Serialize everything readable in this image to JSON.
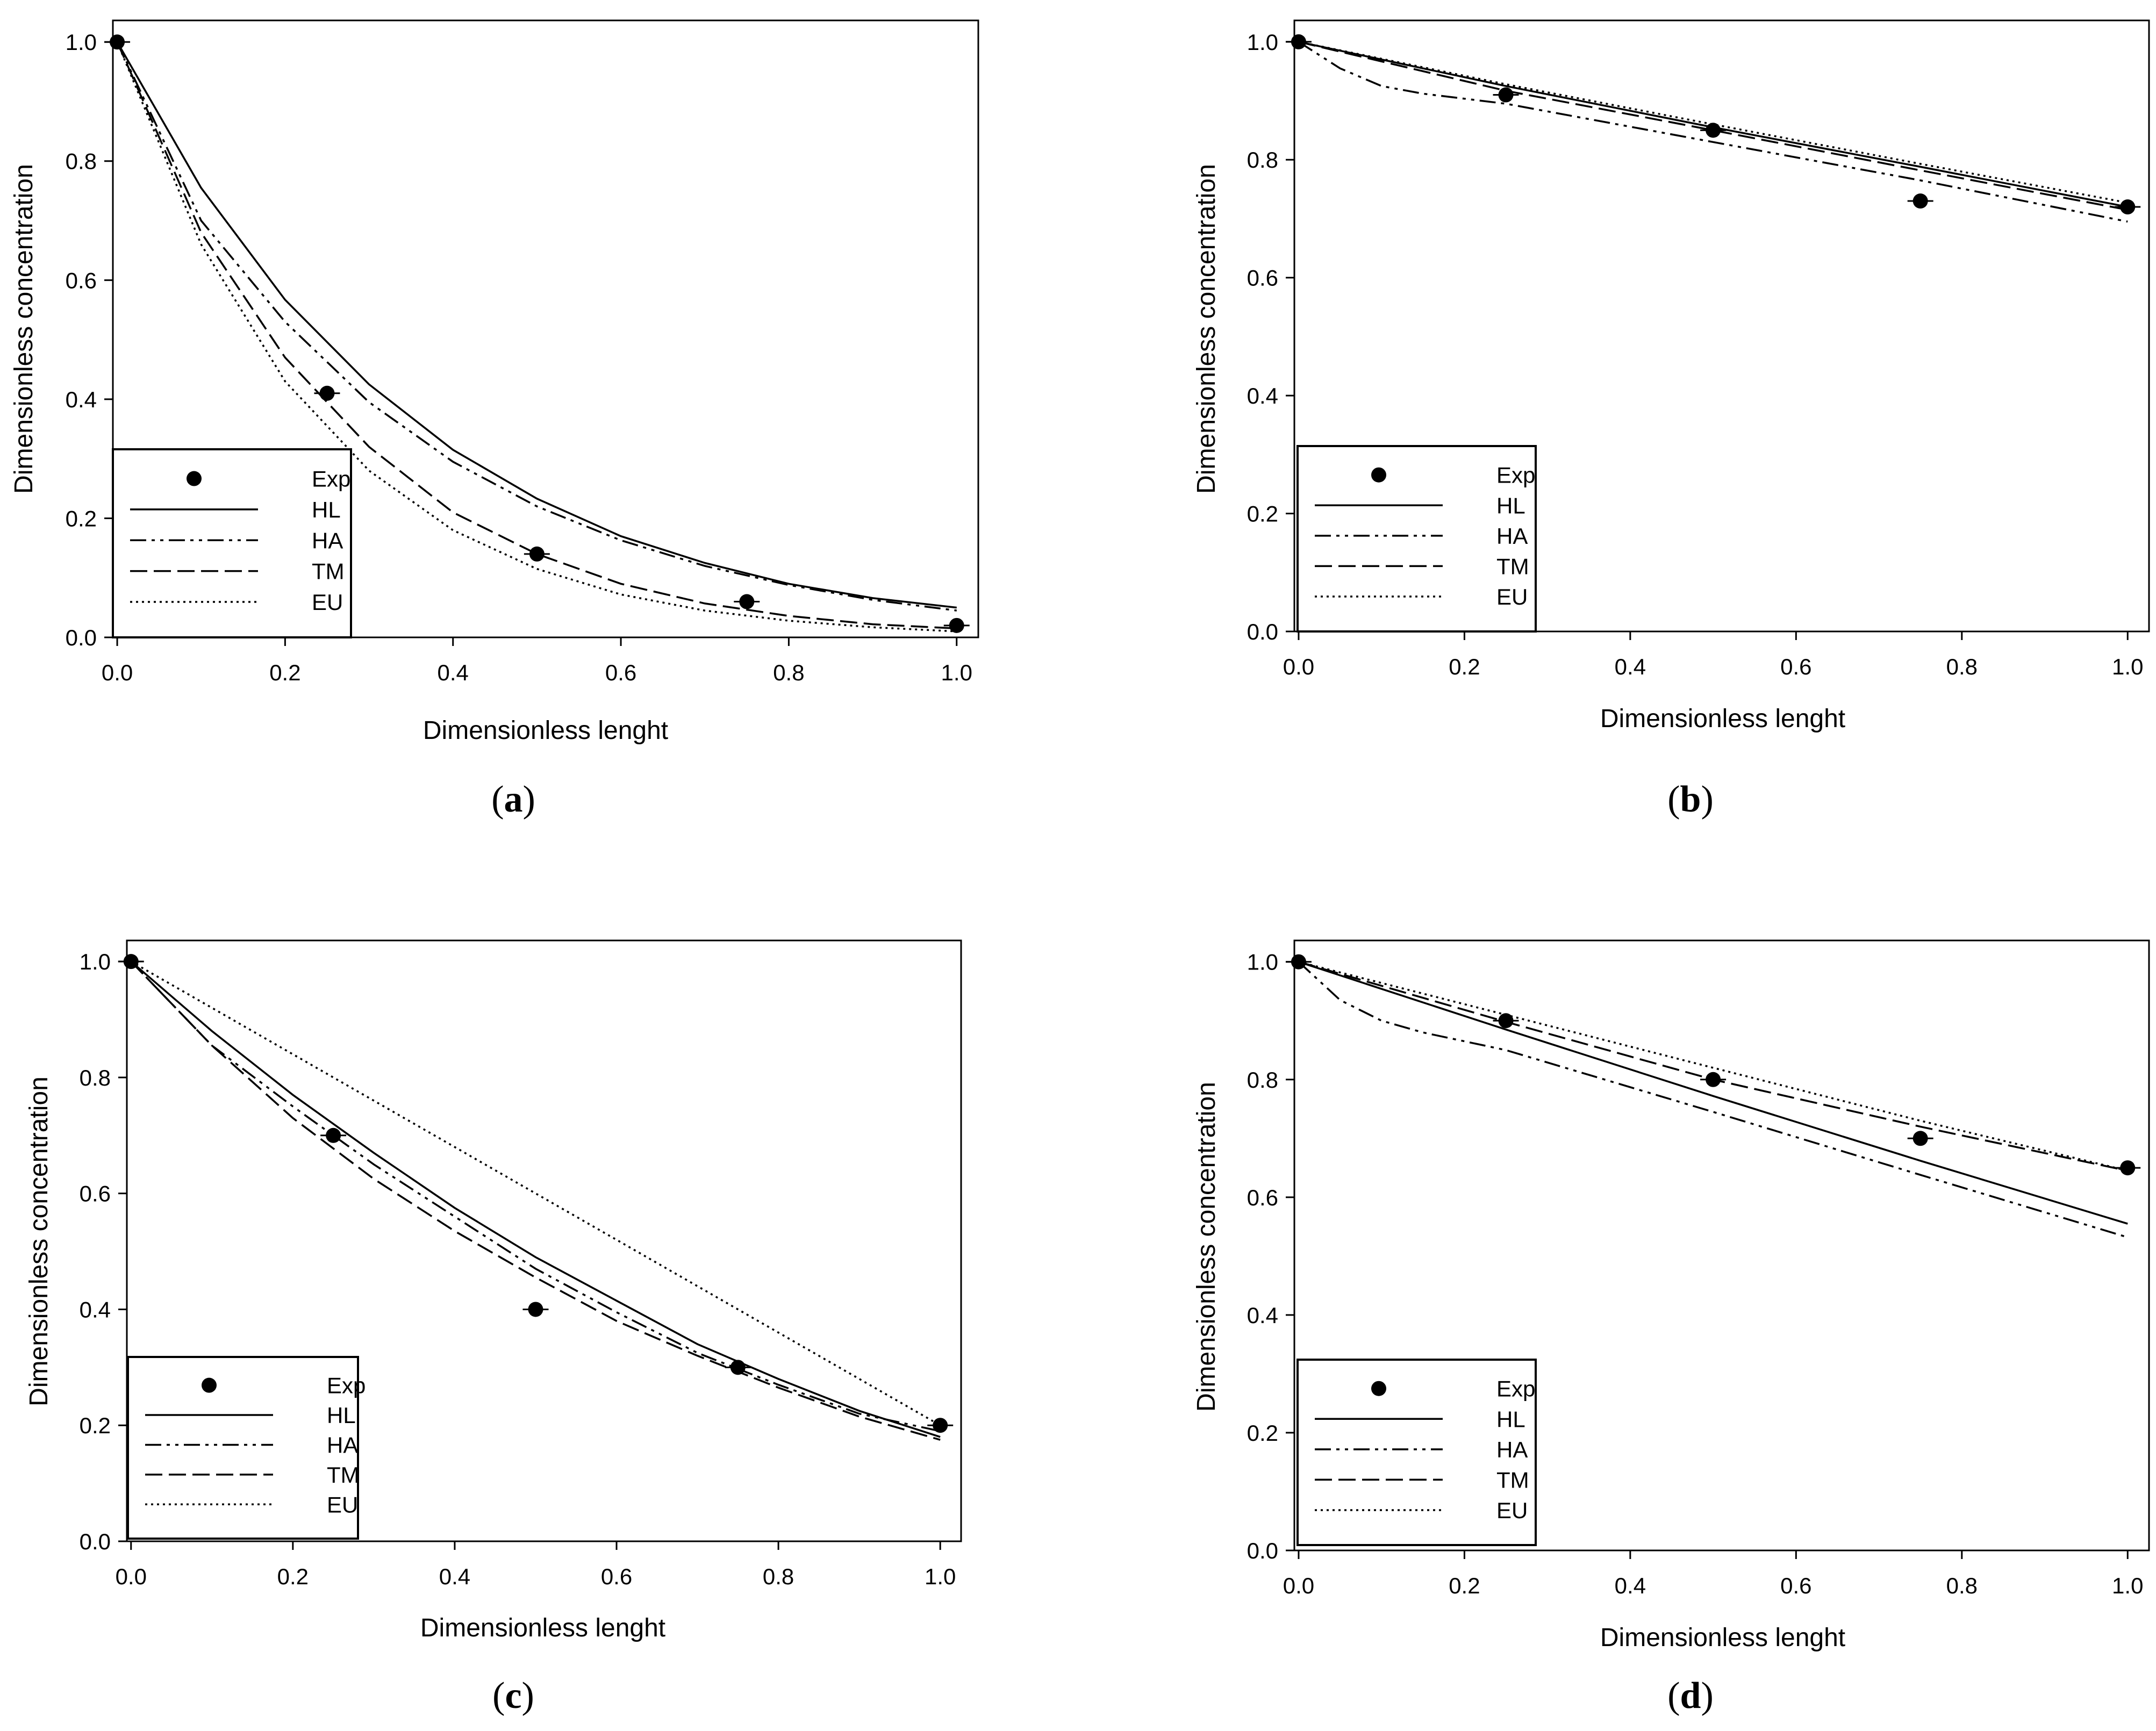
{
  "figure": {
    "legend_order": [
      "Exp",
      "HL",
      "HA",
      "TM",
      "EU"
    ],
    "colors": {
      "ink": "#000000",
      "background": "#ffffff"
    }
  },
  "chart_data": [
    {
      "id": "a",
      "caption_letter": "a",
      "type": "line",
      "xlabel": "Dimensionless lenght",
      "ylabel": "Dimensionless concentration",
      "xlim": [
        0.0,
        1.0
      ],
      "ylim": [
        0.0,
        1.0
      ],
      "x_ticks": [
        "0.0",
        "0.2",
        "0.4",
        "0.6",
        "0.8",
        "1.0"
      ],
      "y_ticks": [
        "0.0",
        "0.2",
        "0.4",
        "0.6",
        "0.8",
        "1.0"
      ],
      "legend_position": "bottom-left",
      "exp": {
        "name": "Exp",
        "x": [
          0.0,
          0.25,
          0.5,
          0.75,
          1.0
        ],
        "y": [
          1.0,
          0.41,
          0.14,
          0.06,
          0.02
        ]
      },
      "series": [
        {
          "name": "HL",
          "style": "solid",
          "x": [
            0,
            0.1,
            0.2,
            0.3,
            0.4,
            0.5,
            0.6,
            0.7,
            0.8,
            0.9,
            1.0
          ],
          "y": [
            1.0,
            0.755,
            0.567,
            0.425,
            0.315,
            0.233,
            0.17,
            0.125,
            0.09,
            0.066,
            0.05
          ]
        },
        {
          "name": "HA",
          "style": "dashdot",
          "x": [
            0,
            0.1,
            0.2,
            0.3,
            0.4,
            0.5,
            0.6,
            0.7,
            0.8,
            0.9,
            1.0
          ],
          "y": [
            1.0,
            0.7,
            0.53,
            0.395,
            0.295,
            0.22,
            0.163,
            0.12,
            0.088,
            0.063,
            0.045
          ]
        },
        {
          "name": "TM",
          "style": "dashed",
          "x": [
            0,
            0.1,
            0.2,
            0.3,
            0.4,
            0.5,
            0.6,
            0.7,
            0.8,
            0.9,
            1.0
          ],
          "y": [
            1.0,
            0.68,
            0.47,
            0.32,
            0.21,
            0.14,
            0.09,
            0.057,
            0.036,
            0.022,
            0.015
          ]
        },
        {
          "name": "EU",
          "style": "dotted",
          "x": [
            0,
            0.1,
            0.2,
            0.3,
            0.4,
            0.5,
            0.6,
            0.7,
            0.8,
            0.9,
            1.0
          ],
          "y": [
            1.0,
            0.66,
            0.43,
            0.28,
            0.18,
            0.115,
            0.072,
            0.045,
            0.028,
            0.017,
            0.01
          ]
        }
      ]
    },
    {
      "id": "b",
      "caption_letter": "b",
      "type": "line",
      "xlabel": "Dimensionless lenght",
      "ylabel": "Dimensionless concentration",
      "xlim": [
        0.0,
        1.0
      ],
      "ylim": [
        0.0,
        1.0
      ],
      "x_ticks": [
        "0.0",
        "0.2",
        "0.4",
        "0.6",
        "0.8",
        "1.0"
      ],
      "y_ticks": [
        "0.0",
        "0.2",
        "0.4",
        "0.6",
        "0.8",
        "1.0"
      ],
      "legend_position": "bottom-left",
      "exp": {
        "name": "Exp",
        "x": [
          0.0,
          0.25,
          0.5,
          0.75,
          1.0
        ],
        "y": [
          1.0,
          0.91,
          0.85,
          0.73,
          0.72
        ]
      },
      "series": [
        {
          "name": "HL",
          "style": "solid",
          "x": [
            0,
            0.25,
            0.5,
            0.75,
            1.0
          ],
          "y": [
            1.0,
            0.925,
            0.855,
            0.788,
            0.72
          ]
        },
        {
          "name": "HA",
          "style": "dashdot",
          "x": [
            0,
            0.05,
            0.1,
            0.15,
            0.25,
            0.5,
            0.75,
            1.0
          ],
          "y": [
            1.0,
            0.955,
            0.925,
            0.912,
            0.895,
            0.83,
            0.765,
            0.695
          ]
        },
        {
          "name": "TM",
          "style": "dashed",
          "x": [
            0,
            0.25,
            0.5,
            0.75,
            1.0
          ],
          "y": [
            1.0,
            0.917,
            0.85,
            0.782,
            0.715
          ]
        },
        {
          "name": "EU",
          "style": "dotted",
          "x": [
            0,
            0.25,
            0.5,
            0.75,
            1.0
          ],
          "y": [
            1.0,
            0.928,
            0.86,
            0.793,
            0.727
          ]
        }
      ]
    },
    {
      "id": "c",
      "caption_letter": "c",
      "type": "line",
      "xlabel": "Dimensionless lenght",
      "ylabel": "Dimensionless concentration",
      "xlim": [
        0.0,
        1.0
      ],
      "ylim": [
        0.0,
        1.0
      ],
      "x_ticks": [
        "0.0",
        "0.2",
        "0.4",
        "0.6",
        "0.8",
        "1.0"
      ],
      "y_ticks": [
        "0.0",
        "0.2",
        "0.4",
        "0.6",
        "0.8",
        "1.0"
      ],
      "legend_position": "bottom-left",
      "exp": {
        "name": "Exp",
        "x": [
          0.0,
          0.25,
          0.5,
          0.75,
          1.0
        ],
        "y": [
          1.0,
          0.7,
          0.4,
          0.3,
          0.2
        ]
      },
      "series": [
        {
          "name": "HL",
          "style": "solid",
          "x": [
            0,
            0.1,
            0.2,
            0.3,
            0.4,
            0.5,
            0.6,
            0.7,
            0.8,
            0.9,
            1.0
          ],
          "y": [
            1.0,
            0.88,
            0.77,
            0.67,
            0.575,
            0.49,
            0.415,
            0.34,
            0.28,
            0.225,
            0.18
          ]
        },
        {
          "name": "HA",
          "style": "dashdot",
          "x": [
            0,
            0.1,
            0.2,
            0.3,
            0.4,
            0.5,
            0.6,
            0.7,
            0.8,
            0.9,
            1.0
          ],
          "y": [
            1.0,
            0.855,
            0.75,
            0.65,
            0.56,
            0.47,
            0.395,
            0.325,
            0.27,
            0.22,
            0.19
          ]
        },
        {
          "name": "TM",
          "style": "dashed",
          "x": [
            0,
            0.1,
            0.2,
            0.3,
            0.4,
            0.5,
            0.6,
            0.7,
            0.8,
            0.9,
            1.0
          ],
          "y": [
            1.0,
            0.855,
            0.73,
            0.625,
            0.535,
            0.455,
            0.38,
            0.32,
            0.265,
            0.215,
            0.175
          ]
        },
        {
          "name": "EU",
          "style": "dotted",
          "x": [
            0,
            0.5,
            1.0
          ],
          "y": [
            1.0,
            0.6,
            0.2
          ]
        }
      ]
    },
    {
      "id": "d",
      "caption_letter": "d",
      "type": "line",
      "xlabel": "Dimensionless lenght",
      "ylabel": "Dimensionless concentration",
      "xlim": [
        0.0,
        1.0
      ],
      "ylim": [
        0.0,
        1.0
      ],
      "x_ticks": [
        "0.0",
        "0.2",
        "0.4",
        "0.6",
        "0.8",
        "1.0"
      ],
      "y_ticks": [
        "0.0",
        "0.2",
        "0.4",
        "0.6",
        "0.8",
        "1.0"
      ],
      "legend_position": "bottom-left",
      "exp": {
        "name": "Exp",
        "x": [
          0.0,
          0.25,
          0.5,
          0.75,
          1.0
        ],
        "y": [
          1.0,
          0.9,
          0.8,
          0.7,
          0.65
        ]
      },
      "series": [
        {
          "name": "HL",
          "style": "solid",
          "x": [
            0,
            0.25,
            0.5,
            0.75,
            1.0
          ],
          "y": [
            1.0,
            0.885,
            0.772,
            0.662,
            0.555
          ]
        },
        {
          "name": "HA",
          "style": "dashdot",
          "x": [
            0,
            0.05,
            0.1,
            0.15,
            0.25,
            0.5,
            0.75,
            1.0
          ],
          "y": [
            1.0,
            0.935,
            0.9,
            0.88,
            0.85,
            0.745,
            0.638,
            0.532
          ]
        },
        {
          "name": "TM",
          "style": "dashed",
          "x": [
            0,
            0.25,
            0.5,
            0.75,
            1.0
          ],
          "y": [
            1.0,
            0.898,
            0.8,
            0.72,
            0.645
          ]
        },
        {
          "name": "EU",
          "style": "dotted",
          "x": [
            0,
            0.25,
            0.5,
            0.75,
            1.0
          ],
          "y": [
            1.0,
            0.91,
            0.82,
            0.73,
            0.645
          ]
        }
      ]
    }
  ]
}
